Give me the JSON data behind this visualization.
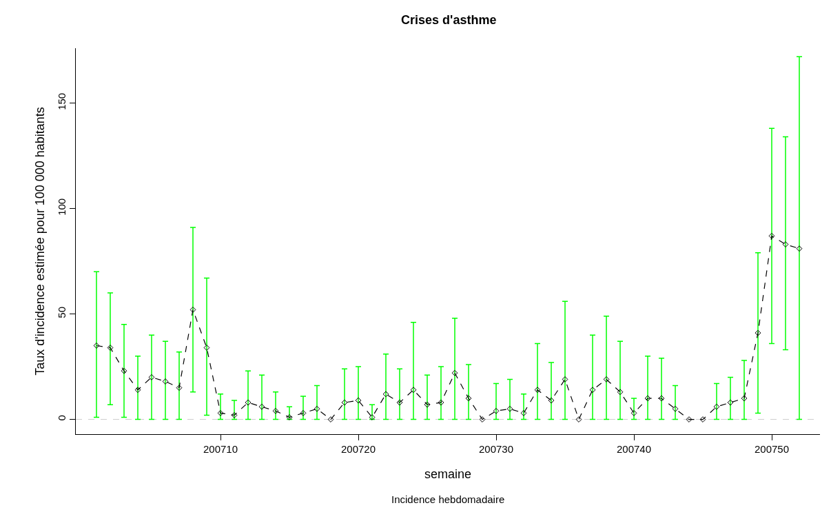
{
  "chart_data": {
    "type": "line",
    "title": "Crises d'asthme",
    "xlabel": "semaine",
    "ylabel": "Taux d'incidence estimée pour 100 000 habitants",
    "annotations": [
      "Incidence hebdomadaire"
    ],
    "x": [
      200701,
      200702,
      200703,
      200704,
      200705,
      200706,
      200707,
      200708,
      200709,
      200710,
      200711,
      200712,
      200713,
      200714,
      200715,
      200716,
      200717,
      200718,
      200719,
      200720,
      200721,
      200722,
      200723,
      200724,
      200725,
      200726,
      200727,
      200728,
      200729,
      200730,
      200731,
      200732,
      200733,
      200734,
      200735,
      200736,
      200737,
      200738,
      200739,
      200740,
      200741,
      200742,
      200743,
      200744,
      200745,
      200746,
      200747,
      200748,
      200749,
      200750,
      200751,
      200752
    ],
    "series": [
      {
        "color": "#000000",
        "marker": "diamond",
        "line_style": "dashed",
        "values": [
          35,
          34,
          23,
          14,
          20,
          18,
          15,
          52,
          34,
          3,
          2,
          8,
          6,
          4,
          1,
          3,
          5,
          0,
          8,
          9,
          1,
          12,
          8,
          14,
          7,
          8,
          22,
          10,
          0,
          4,
          5,
          3,
          14,
          9,
          19,
          0,
          14,
          19,
          13,
          3,
          10,
          10,
          5,
          0,
          0,
          6,
          8,
          10,
          41,
          87,
          83,
          81
        ],
        "errors": [
          [
            1,
            70
          ],
          [
            7,
            60
          ],
          [
            1,
            45
          ],
          [
            0,
            30
          ],
          [
            0,
            40
          ],
          [
            0,
            37
          ],
          [
            0,
            32
          ],
          [
            13,
            91
          ],
          [
            2,
            67
          ],
          [
            0,
            12
          ],
          [
            0,
            9
          ],
          [
            0,
            23
          ],
          [
            0,
            21
          ],
          [
            0,
            13
          ],
          [
            0,
            6
          ],
          [
            0,
            11
          ],
          [
            0,
            16
          ],
          null,
          [
            0,
            24
          ],
          [
            0,
            25
          ],
          [
            0,
            7
          ],
          [
            0,
            31
          ],
          [
            0,
            24
          ],
          [
            0,
            46
          ],
          [
            0,
            21
          ],
          [
            0,
            25
          ],
          [
            0,
            48
          ],
          [
            0,
            26
          ],
          null,
          [
            0,
            17
          ],
          [
            0,
            19
          ],
          [
            0,
            12
          ],
          [
            0,
            36
          ],
          [
            0,
            27
          ],
          [
            0,
            56
          ],
          null,
          [
            0,
            40
          ],
          [
            0,
            49
          ],
          [
            0,
            37
          ],
          [
            0,
            10
          ],
          [
            0,
            30
          ],
          [
            0,
            29
          ],
          [
            0,
            16
          ],
          null,
          null,
          [
            0,
            17
          ],
          [
            0,
            20
          ],
          [
            0,
            28
          ],
          [
            3,
            79
          ],
          [
            36,
            138
          ],
          [
            33,
            134
          ],
          [
            0,
            172
          ]
        ]
      }
    ],
    "xlim": [
      200699.5,
      200753.5
    ],
    "xticks": [
      200710,
      200720,
      200730,
      200740,
      200750
    ],
    "ylim": [
      -7,
      176
    ],
    "yticks": [
      0,
      50,
      100,
      150
    ],
    "ref_lines": [
      {
        "axis": "y",
        "value": 0,
        "color": "#cccccc",
        "line_style": "dashed"
      }
    ]
  }
}
